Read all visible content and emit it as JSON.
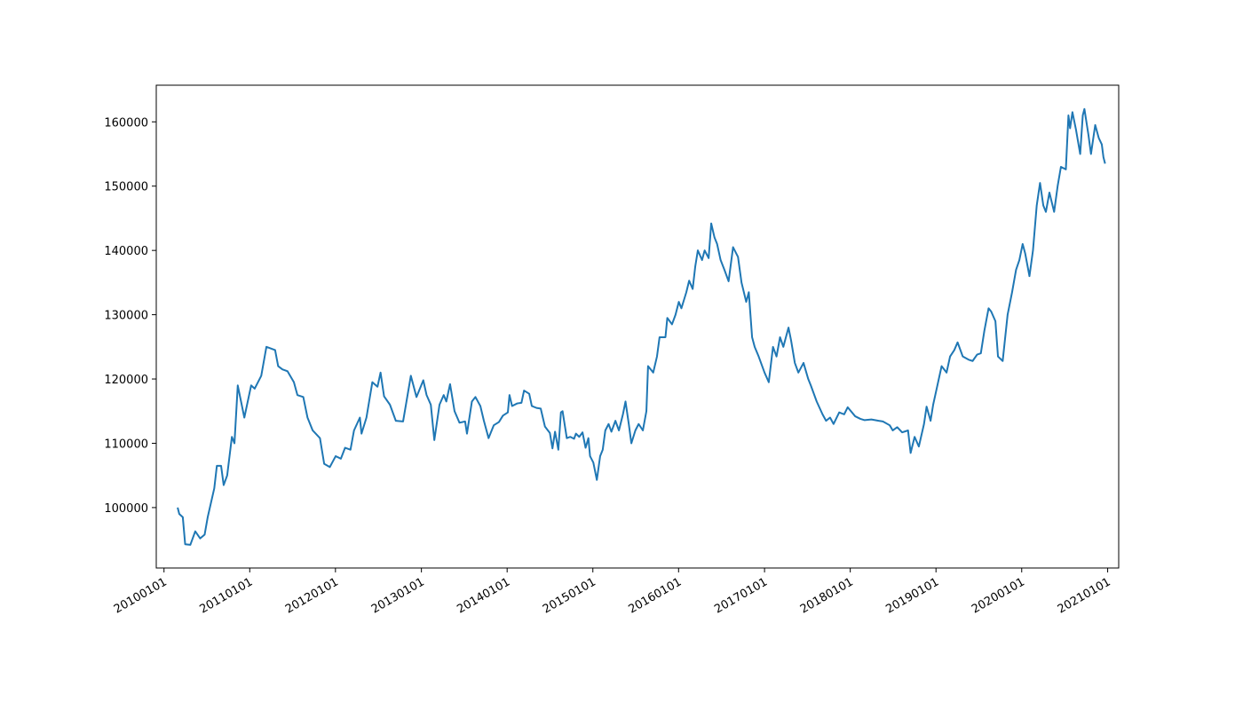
{
  "chart_data": {
    "type": "line",
    "color": "#1f77b4",
    "x": [
      "2010-02-28",
      "2010-03-07",
      "2010-03-22",
      "2010-04-01",
      "2010-04-23",
      "2010-05-14",
      "2010-06-04",
      "2010-06-23",
      "2010-07-06",
      "2010-08-03",
      "2010-08-14",
      "2010-09-01",
      "2010-09-12",
      "2010-09-27",
      "2010-10-17",
      "2010-10-28",
      "2010-11-11",
      "2010-12-09",
      "2011-01-07",
      "2011-01-22",
      "2011-02-19",
      "2011-03-13",
      "2011-04-19",
      "2011-05-02",
      "2011-05-20",
      "2011-06-11",
      "2011-07-08",
      "2011-07-23",
      "2011-08-17",
      "2011-09-04",
      "2011-09-26",
      "2011-10-27",
      "2011-11-14",
      "2011-12-08",
      "2012-01-02",
      "2012-01-24",
      "2012-02-11",
      "2012-03-05",
      "2012-03-20",
      "2012-04-14",
      "2012-04-21",
      "2012-05-12",
      "2012-06-06",
      "2012-06-28",
      "2012-07-11",
      "2012-07-26",
      "2012-08-20",
      "2012-09-14",
      "2012-10-15",
      "2012-11-17",
      "2012-12-11",
      "2013-01-09",
      "2013-01-23",
      "2013-02-10",
      "2013-02-25",
      "2013-03-19",
      "2013-04-06",
      "2013-04-17",
      "2013-05-03",
      "2013-05-22",
      "2013-06-12",
      "2013-07-06",
      "2013-07-14",
      "2013-08-04",
      "2013-08-19",
      "2013-09-09",
      "2013-09-24",
      "2013-10-14",
      "2013-11-05",
      "2013-11-27",
      "2013-12-14",
      "2014-01-04",
      "2014-01-11",
      "2014-01-22",
      "2014-02-13",
      "2014-03-03",
      "2014-03-14",
      "2014-04-05",
      "2014-04-16",
      "2014-05-06",
      "2014-05-24",
      "2014-06-11",
      "2014-07-02",
      "2014-07-13",
      "2014-07-24",
      "2014-08-07",
      "2014-08-18",
      "2014-08-25",
      "2014-09-12",
      "2014-09-27",
      "2014-10-13",
      "2014-10-21",
      "2014-11-04",
      "2014-11-18",
      "2014-12-01",
      "2014-12-13",
      "2014-12-20",
      "2015-01-03",
      "2015-01-18",
      "2015-02-01",
      "2015-02-12",
      "2015-02-23",
      "2015-03-09",
      "2015-03-21",
      "2015-04-07",
      "2015-04-22",
      "2015-05-09",
      "2015-05-20",
      "2015-06-03",
      "2015-06-14",
      "2015-07-01",
      "2015-07-15",
      "2015-08-02",
      "2015-08-17",
      "2015-08-24",
      "2015-09-15",
      "2015-10-01",
      "2015-10-12",
      "2015-11-06",
      "2015-11-14",
      "2015-12-04",
      "2015-12-19",
      "2016-01-02",
      "2016-01-13",
      "2016-02-03",
      "2016-02-15",
      "2016-03-01",
      "2016-03-12",
      "2016-03-23",
      "2016-04-10",
      "2016-04-21",
      "2016-05-08",
      "2016-05-19",
      "2016-06-02",
      "2016-06-13",
      "2016-06-28",
      "2016-07-14",
      "2016-08-01",
      "2016-08-20",
      "2016-09-10",
      "2016-09-25",
      "2016-10-15",
      "2016-10-26",
      "2016-11-09",
      "2016-11-20",
      "2016-12-07",
      "2017-01-01",
      "2017-01-19",
      "2017-02-06",
      "2017-02-21",
      "2017-03-08",
      "2017-03-22",
      "2017-04-13",
      "2017-04-24",
      "2017-05-10",
      "2017-05-25",
      "2017-06-16",
      "2017-07-06",
      "2017-07-17",
      "2017-08-11",
      "2017-09-05",
      "2017-09-20",
      "2017-10-07",
      "2017-10-22",
      "2017-11-15",
      "2017-12-06",
      "2017-12-21",
      "2018-01-22",
      "2018-02-13",
      "2018-03-03",
      "2018-04-01",
      "2018-05-02",
      "2018-05-20",
      "2018-06-18",
      "2018-07-01",
      "2018-07-20",
      "2018-08-10",
      "2018-09-04",
      "2018-09-15",
      "2018-10-02",
      "2018-10-20",
      "2018-11-11",
      "2018-11-22",
      "2018-12-09",
      "2018-12-20",
      "2019-01-10",
      "2019-01-25",
      "2019-02-15",
      "2019-03-02",
      "2019-03-20",
      "2019-04-03",
      "2019-04-25",
      "2019-05-20",
      "2019-06-06",
      "2019-06-25",
      "2019-07-11",
      "2019-07-26",
      "2019-08-13",
      "2019-08-24",
      "2019-09-11",
      "2019-09-22",
      "2019-10-12",
      "2019-11-02",
      "2019-11-21",
      "2019-12-08",
      "2019-12-22",
      "2020-01-05",
      "2020-01-16",
      "2020-02-03",
      "2020-02-18",
      "2020-03-05",
      "2020-03-19",
      "2020-04-02",
      "2020-04-13",
      "2020-04-28",
      "2020-05-18",
      "2020-06-02",
      "2020-06-16",
      "2020-07-07",
      "2020-07-18",
      "2020-07-25",
      "2020-08-04",
      "2020-08-19",
      "2020-09-06",
      "2020-09-17",
      "2020-09-24",
      "2020-10-11",
      "2020-10-22",
      "2020-11-09",
      "2020-11-24",
      "2020-12-07",
      "2020-12-14",
      "2020-12-21"
    ],
    "values": [
      100000,
      99000,
      98500,
      94300,
      94200,
      96300,
      95200,
      95800,
      98500,
      103000,
      106500,
      106500,
      103500,
      105000,
      111000,
      110000,
      119000,
      114000,
      119000,
      118500,
      120500,
      125000,
      124500,
      122000,
      121500,
      121200,
      119500,
      117500,
      117200,
      114000,
      112000,
      110800,
      106800,
      106300,
      108000,
      107600,
      109300,
      109000,
      112000,
      114000,
      111500,
      114000,
      119500,
      118800,
      121000,
      117300,
      116000,
      113500,
      113400,
      120500,
      117200,
      119800,
      117500,
      116000,
      110500,
      116000,
      117500,
      116500,
      119200,
      115000,
      113200,
      113400,
      111500,
      116500,
      117200,
      115800,
      113500,
      110800,
      112800,
      113300,
      114300,
      114800,
      117500,
      115800,
      116200,
      116300,
      118200,
      117700,
      115800,
      115500,
      115400,
      112600,
      111600,
      109200,
      111800,
      109000,
      114800,
      115000,
      110800,
      111000,
      110700,
      111500,
      111000,
      111700,
      109300,
      110800,
      108000,
      107000,
      104300,
      108000,
      109000,
      112000,
      113000,
      111800,
      113500,
      112000,
      114500,
      116500,
      113000,
      110000,
      112000,
      113000,
      112000,
      115000,
      122000,
      121000,
      123500,
      126500,
      126500,
      129500,
      128500,
      130000,
      132000,
      131000,
      133500,
      135300,
      134000,
      137500,
      140000,
      138500,
      140000,
      138800,
      144200,
      142000,
      141000,
      138500,
      137000,
      135200,
      140500,
      139000,
      135000,
      132000,
      133500,
      126500,
      125000,
      123500,
      121000,
      119500,
      125000,
      123500,
      126500,
      125000,
      128000,
      126000,
      122500,
      121000,
      122500,
      120000,
      119000,
      116500,
      114500,
      113500,
      114000,
      113000,
      114800,
      114500,
      115600,
      114200,
      113800,
      113600,
      113700,
      113500,
      113400,
      112800,
      112000,
      112500,
      111700,
      112000,
      108500,
      111000,
      109500,
      113000,
      115700,
      113500,
      116000,
      119500,
      122000,
      121000,
      123500,
      124500,
      125700,
      123500,
      123000,
      122800,
      123800,
      124000,
      127500,
      131000,
      130500,
      129000,
      123500,
      122800,
      130000,
      133500,
      137000,
      138500,
      141000,
      139500,
      136000,
      140000,
      147000,
      150500,
      147000,
      146000,
      149000,
      146000,
      150000,
      153000,
      152600,
      161000,
      159000,
      161500,
      158800,
      155000,
      161000,
      162000,
      158000,
      155000,
      159500,
      157500,
      156500,
      154500,
      153500
    ],
    "xlim": [
      "2009-11-29",
      "2021-02-17"
    ],
    "xticks": [
      {
        "value": "2010-01-01",
        "label": "20100101"
      },
      {
        "value": "2011-01-01",
        "label": "20110101"
      },
      {
        "value": "2012-01-01",
        "label": "20120101"
      },
      {
        "value": "2013-01-01",
        "label": "20130101"
      },
      {
        "value": "2014-01-01",
        "label": "20140101"
      },
      {
        "value": "2015-01-01",
        "label": "20150101"
      },
      {
        "value": "2016-01-01",
        "label": "20160101"
      },
      {
        "value": "2017-01-01",
        "label": "20170101"
      },
      {
        "value": "2018-01-01",
        "label": "20180101"
      },
      {
        "value": "2019-01-01",
        "label": "20190101"
      },
      {
        "value": "2020-01-01",
        "label": "20200101"
      },
      {
        "value": "2021-01-01",
        "label": "20210101"
      }
    ],
    "ylim": [
      90600,
      165700
    ],
    "yticks": [
      100000,
      110000,
      120000,
      130000,
      140000,
      150000,
      160000
    ]
  }
}
